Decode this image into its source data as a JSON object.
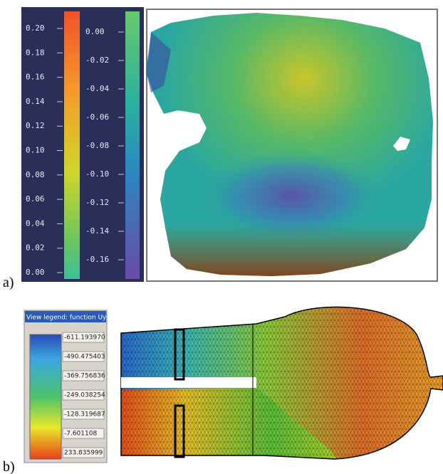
{
  "panel_a": {
    "label": "a)",
    "colorbar_1": {
      "ticks": [
        "0.20",
        "0.18",
        "0.16",
        "0.14",
        "0.12",
        "0.10",
        "0.08",
        "0.06",
        "0.04",
        "0.02",
        "0.00"
      ]
    },
    "colorbar_2": {
      "ticks": [
        "0.00",
        "-0.02",
        "-0.04",
        "-0.06",
        "-0.08",
        "-0.10",
        "-0.12",
        "-0.14",
        "-0.16"
      ]
    }
  },
  "panel_b": {
    "label": "b)",
    "legend": {
      "title": "View legend: function Uy,mk...",
      "values": [
        "-611.193970",
        "-490.475403",
        "-369.756836",
        "-249.038254",
        "-128.319687",
        "-7.601108",
        "233.835999"
      ]
    }
  }
}
